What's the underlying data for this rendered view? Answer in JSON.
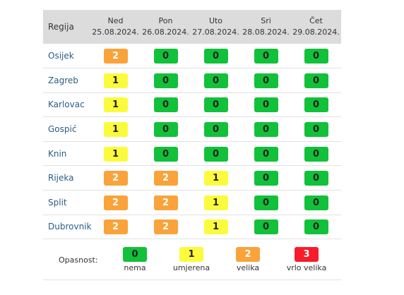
{
  "header": {
    "region_label": "Regija",
    "days": [
      {
        "name": "Ned",
        "date": "25.08.2024."
      },
      {
        "name": "Pon",
        "date": "26.08.2024."
      },
      {
        "name": "Uto",
        "date": "27.08.2024."
      },
      {
        "name": "Sri",
        "date": "28.08.2024."
      },
      {
        "name": "Čet",
        "date": "29.08.2024."
      }
    ]
  },
  "rows": [
    {
      "region": "Osijek",
      "levels": [
        2,
        0,
        0,
        0,
        0
      ]
    },
    {
      "region": "Zagreb",
      "levels": [
        1,
        0,
        0,
        0,
        0
      ]
    },
    {
      "region": "Karlovac",
      "levels": [
        1,
        0,
        0,
        0,
        0
      ]
    },
    {
      "region": "Gospić",
      "levels": [
        1,
        0,
        0,
        0,
        0
      ]
    },
    {
      "region": "Knin",
      "levels": [
        1,
        0,
        0,
        0,
        0
      ]
    },
    {
      "region": "Rijeka",
      "levels": [
        2,
        2,
        1,
        0,
        0
      ]
    },
    {
      "region": "Split",
      "levels": [
        2,
        2,
        1,
        0,
        0
      ]
    },
    {
      "region": "Dubrovnik",
      "levels": [
        2,
        2,
        1,
        0,
        0
      ]
    }
  ],
  "legend": {
    "title": "Opasnost:",
    "items": [
      {
        "value": "0",
        "label": "nema"
      },
      {
        "value": "1",
        "label": "umjerena"
      },
      {
        "value": "2",
        "label": "velika"
      },
      {
        "value": "3",
        "label": "vrlo velika"
      }
    ]
  },
  "colors": {
    "level_0": "#11c13a",
    "level_1": "#fbfb3d",
    "level_2": "#f9a33a",
    "level_3": "#f71c2b",
    "header_bg": "#dcdcdc",
    "region_link": "#2a5d86"
  }
}
